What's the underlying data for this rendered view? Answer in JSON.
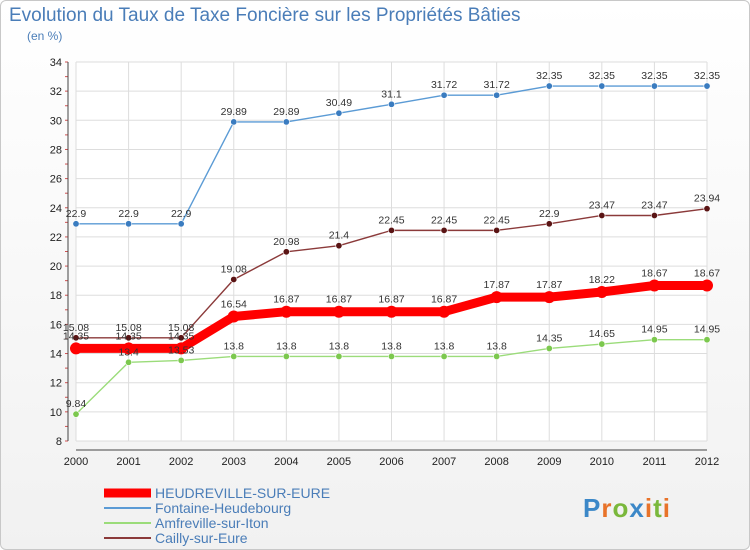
{
  "chart_data": {
    "type": "line",
    "title": "Evolution du Taux de Taxe Foncière sur les Propriétés Bâties",
    "subtitle": "(en %)",
    "ylim": [
      8,
      34
    ],
    "yticks": [
      "8",
      "10",
      "12",
      "14",
      "16",
      "18",
      "20",
      "22",
      "24",
      "26",
      "28",
      "30",
      "32",
      "34"
    ],
    "categories": [
      "2000",
      "2001",
      "2002",
      "2003",
      "2004",
      "2005",
      "2006",
      "2007",
      "2008",
      "2009",
      "2010",
      "2011",
      "2012"
    ],
    "series": [
      {
        "name": "Fontaine-Heudebourg",
        "color": "#5b9bd5",
        "marker": "#3a7cc0",
        "values": [
          22.9,
          22.9,
          22.9,
          29.89,
          29.89,
          30.49,
          31.1,
          31.72,
          31.72,
          32.35,
          32.35,
          32.35,
          32.35
        ],
        "labels": [
          "22.9",
          "22.9",
          "22.9",
          "29.89",
          "29.89",
          "30.49",
          "31.1",
          "31.72",
          "31.72",
          "32.35",
          "32.35",
          "32.35",
          "32.35"
        ]
      },
      {
        "name": "Cailly-sur-Eure",
        "color": "#8b3a3a",
        "marker": "#5a1414",
        "values": [
          15.08,
          15.08,
          15.08,
          19.08,
          20.98,
          21.4,
          22.45,
          22.45,
          22.45,
          22.9,
          23.47,
          23.47,
          23.94
        ],
        "labels": [
          "15.08",
          "15.08",
          "15.08",
          "19.08",
          "20.98",
          "21.4",
          "22.45",
          "22.45",
          "22.45",
          "22.9",
          "23.47",
          "23.47",
          "23.94"
        ]
      },
      {
        "name": "Amfreville-sur-Iton",
        "color": "#9bdc7a",
        "marker": "#7cc84e",
        "values": [
          9.84,
          13.4,
          13.53,
          13.8,
          13.8,
          13.8,
          13.8,
          13.8,
          13.8,
          14.35,
          14.65,
          14.95,
          14.95
        ],
        "labels": [
          "9.84",
          "13.4",
          "13.53",
          "13.8",
          "13.8",
          "13.8",
          "13.8",
          "13.8",
          "13.8",
          "14.35",
          "14.65",
          "14.95",
          "14.95"
        ]
      },
      {
        "name": "HEUDREVILLE-SUR-EURE",
        "color": "#ff0000",
        "marker": "#ff0000",
        "values": [
          14.35,
          14.35,
          14.35,
          16.54,
          16.87,
          16.87,
          16.87,
          16.87,
          17.87,
          17.87,
          18.22,
          18.67,
          18.67
        ],
        "labels": [
          "14.35",
          "14.35",
          "14.35",
          "16.54",
          "16.87",
          "16.87",
          "16.87",
          "16.87",
          "17.87",
          "17.87",
          "18.22",
          "18.67",
          "18.67"
        ]
      }
    ],
    "legend": [
      {
        "name": "HEUDREVILLE-SUR-EURE",
        "color": "#ff0000"
      },
      {
        "name": "Fontaine-Heudebourg",
        "color": "#5b9bd5"
      },
      {
        "name": "Amfreville-sur-Iton",
        "color": "#9bdc7a"
      },
      {
        "name": "Cailly-sur-Eure",
        "color": "#8b3a3a"
      }
    ]
  },
  "logo": {
    "letters": [
      "P",
      "r",
      "o",
      "x",
      "i",
      "t",
      "i"
    ],
    "colors": [
      "#3c88c8",
      "#e8732a",
      "#7ab83c",
      "#3c88c8",
      "#e8732a",
      "#7ab83c",
      "#e8732a"
    ]
  }
}
